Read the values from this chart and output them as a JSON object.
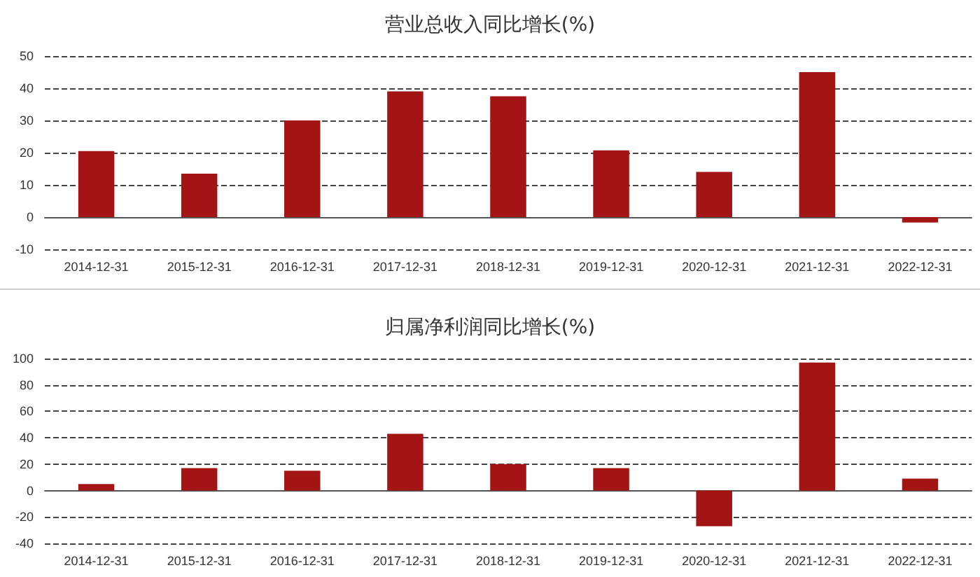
{
  "chart_data": [
    {
      "type": "bar",
      "title": "营业总收入同比增长(%)",
      "categories": [
        "2014-12-31",
        "2015-12-31",
        "2016-12-31",
        "2017-12-31",
        "2018-12-31",
        "2019-12-31",
        "2020-12-31",
        "2021-12-31",
        "2022-12-31"
      ],
      "series": [
        {
          "color": "#a31515",
          "values": [
            20.5,
            13.5,
            30,
            39,
            37.5,
            20.7,
            14,
            45,
            -1.7
          ]
        }
      ],
      "ylim": [
        -10,
        50
      ],
      "yticks": [
        -10,
        0,
        10,
        20,
        30,
        40,
        50
      ],
      "grid": "y"
    },
    {
      "type": "bar",
      "title": "归属净利润同比增长(%)",
      "categories": [
        "2014-12-31",
        "2015-12-31",
        "2016-12-31",
        "2017-12-31",
        "2018-12-31",
        "2019-12-31",
        "2020-12-31",
        "2021-12-31",
        "2022-12-31"
      ],
      "series": [
        {
          "color": "#a31515",
          "values": [
            5,
            17,
            15,
            43,
            20,
            17,
            -27,
            97,
            9
          ]
        }
      ],
      "ylim": [
        -40,
        100
      ],
      "yticks": [
        -40,
        -20,
        0,
        20,
        40,
        60,
        80,
        100
      ],
      "grid": "y"
    }
  ]
}
